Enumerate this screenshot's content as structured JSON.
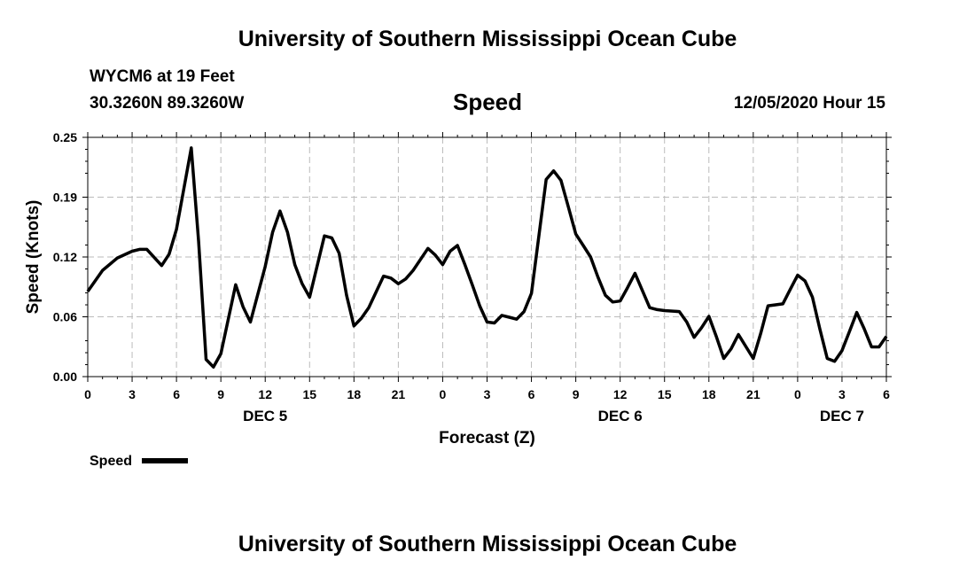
{
  "header": {
    "title": "University of Southern Mississippi Ocean Cube",
    "station": "WYCM6 at 19 Feet",
    "coordinates": "30.3260N 89.3260W",
    "datetime": "12/05/2020 Hour 15"
  },
  "footer": {
    "title": "University of Southern Mississippi Ocean Cube"
  },
  "chart_data": {
    "type": "line",
    "title": "Speed",
    "xlabel": "Forecast (Z)",
    "ylabel": "Speed (Knots)",
    "ylim": [
      0,
      0.25
    ],
    "xlim": [
      0,
      54
    ],
    "grid": true,
    "legend_position": "bottom-left",
    "x_ticks": [
      0,
      3,
      6,
      9,
      12,
      15,
      18,
      21,
      24,
      27,
      30,
      33,
      36,
      39,
      42,
      45,
      48,
      51,
      54
    ],
    "x_tick_labels": [
      "0",
      "3",
      "6",
      "9",
      "12",
      "15",
      "18",
      "21",
      "0",
      "3",
      "6",
      "9",
      "12",
      "15",
      "18",
      "21",
      "0",
      "3",
      "6"
    ],
    "y_ticks": [
      0,
      0.0625,
      0.125,
      0.1875,
      0.25
    ],
    "y_tick_labels": [
      "0.00",
      "0.06",
      "0.12",
      "0.19",
      "0.25"
    ],
    "day_labels": [
      {
        "x": 12,
        "text": "DEC 5"
      },
      {
        "x": 36,
        "text": "DEC 6"
      },
      {
        "x": 51,
        "text": "DEC 7"
      }
    ],
    "series": [
      {
        "name": "Speed",
        "color": "#000000",
        "x": [
          0,
          1,
          2,
          3,
          3.5,
          4,
          5,
          5.5,
          6,
          7,
          7.5,
          8,
          8.5,
          9,
          10,
          10.5,
          11,
          12,
          12.5,
          13,
          13.5,
          14,
          14.5,
          15,
          16,
          16.5,
          17,
          17.5,
          18,
          18.5,
          19,
          20,
          20.5,
          21,
          21.5,
          22,
          23,
          23.5,
          24,
          24.5,
          25,
          25.5,
          26,
          26.5,
          27,
          27.5,
          28,
          28.5,
          29,
          29.5,
          30,
          31,
          31.5,
          32,
          32.5,
          33,
          33.5,
          34,
          34.5,
          35,
          35.5,
          36,
          36.5,
          37,
          38,
          38.5,
          39,
          40,
          40.5,
          41,
          41.5,
          42,
          42.5,
          43,
          43.5,
          44,
          45,
          45.5,
          46,
          46.5,
          47,
          47.5,
          48,
          48.5,
          49,
          49.5,
          50,
          50.5,
          51,
          51.5,
          52,
          52.5,
          53,
          53.5,
          54
        ],
        "values": [
          0.089,
          0.111,
          0.124,
          0.131,
          0.133,
          0.133,
          0.116,
          0.128,
          0.154,
          0.239,
          0.141,
          0.018,
          0.01,
          0.024,
          0.096,
          0.073,
          0.057,
          0.115,
          0.151,
          0.173,
          0.151,
          0.117,
          0.097,
          0.083,
          0.147,
          0.145,
          0.129,
          0.085,
          0.053,
          0.061,
          0.072,
          0.105,
          0.103,
          0.097,
          0.102,
          0.111,
          0.134,
          0.127,
          0.117,
          0.131,
          0.137,
          0.117,
          0.096,
          0.074,
          0.057,
          0.056,
          0.064,
          0.062,
          0.06,
          0.068,
          0.087,
          0.206,
          0.215,
          0.205,
          0.177,
          0.149,
          0.137,
          0.125,
          0.104,
          0.085,
          0.078,
          0.079,
          0.093,
          0.108,
          0.072,
          0.07,
          0.069,
          0.068,
          0.057,
          0.041,
          0.051,
          0.063,
          0.042,
          0.019,
          0.029,
          0.044,
          0.019,
          0.045,
          0.074,
          0.075,
          0.076,
          0.091,
          0.106,
          0.1,
          0.083,
          0.05,
          0.019,
          0.016,
          0.027,
          0.047,
          0.067,
          0.05,
          0.031,
          0.031,
          0.042
        ]
      }
    ]
  }
}
